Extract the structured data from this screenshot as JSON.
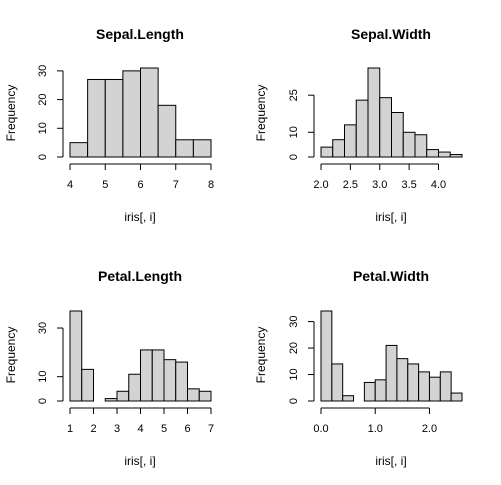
{
  "chart_data": [
    {
      "type": "bar",
      "title": "Sepal.Length",
      "xlabel": "iris[, i]",
      "ylabel": "Frequency",
      "breaks": [
        4.0,
        4.5,
        5.0,
        5.5,
        6.0,
        6.5,
        7.0,
        7.5,
        8.0
      ],
      "values": [
        5,
        27,
        27,
        30,
        31,
        18,
        6,
        6
      ],
      "xlim": [
        4.0,
        8.0
      ],
      "ylim": [
        0,
        31
      ],
      "x_ticks": [
        4,
        5,
        6,
        7,
        8
      ],
      "x_tick_labels": [
        "4",
        "5",
        "6",
        "7",
        "8"
      ],
      "y_ticks": [
        0,
        10,
        20,
        30
      ],
      "y_tick_labels": [
        "0",
        "10",
        "20",
        "30"
      ]
    },
    {
      "type": "bar",
      "title": "Sepal.Width",
      "xlabel": "iris[, i]",
      "ylabel": "Frequency",
      "breaks": [
        2.0,
        2.2,
        2.4,
        2.6,
        2.8,
        3.0,
        3.2,
        3.4,
        3.6,
        3.8,
        4.0,
        4.2,
        4.4
      ],
      "values": [
        4,
        7,
        13,
        23,
        36,
        24,
        18,
        10,
        9,
        3,
        2,
        1
      ],
      "xlim": [
        2.0,
        4.4
      ],
      "ylim": [
        0,
        36
      ],
      "x_ticks": [
        2.0,
        2.5,
        3.0,
        3.5,
        4.0
      ],
      "x_tick_labels": [
        "2.0",
        "2.5",
        "3.0",
        "3.5",
        "4.0"
      ],
      "y_ticks": [
        0,
        10,
        25
      ],
      "y_tick_labels": [
        "0",
        "10",
        "25"
      ]
    },
    {
      "type": "bar",
      "title": "Petal.Length",
      "xlabel": "iris[, i]",
      "ylabel": "Frequency",
      "breaks": [
        1.0,
        1.5,
        2.0,
        2.5,
        3.0,
        3.5,
        4.0,
        4.5,
        5.0,
        5.5,
        6.0,
        6.5,
        7.0
      ],
      "values": [
        37,
        13,
        0,
        1,
        4,
        11,
        21,
        21,
        17,
        16,
        5,
        4
      ],
      "xlim": [
        1.0,
        7.0
      ],
      "ylim": [
        0,
        37
      ],
      "x_ticks": [
        1,
        2,
        3,
        4,
        5,
        6,
        7
      ],
      "x_tick_labels": [
        "1",
        "2",
        "3",
        "4",
        "5",
        "6",
        "7"
      ],
      "y_ticks": [
        0,
        10,
        30
      ],
      "y_tick_labels": [
        "0",
        "10",
        "30"
      ]
    },
    {
      "type": "bar",
      "title": "Petal.Width",
      "xlabel": "iris[, i]",
      "ylabel": "Frequency",
      "breaks": [
        0.0,
        0.2,
        0.4,
        0.6,
        0.8,
        1.0,
        1.2,
        1.4,
        1.6,
        1.8,
        2.0,
        2.2,
        2.4,
        2.6
      ],
      "values": [
        34,
        14,
        2,
        0,
        7,
        8,
        21,
        16,
        14,
        11,
        9,
        11,
        3
      ],
      "xlim": [
        0.0,
        2.6
      ],
      "ylim": [
        0,
        34
      ],
      "x_ticks": [
        0.0,
        1.0,
        2.0
      ],
      "x_tick_labels": [
        "0.0",
        "1.0",
        "2.0"
      ],
      "y_ticks": [
        0,
        10,
        20,
        30
      ],
      "y_tick_labels": [
        "0",
        "10",
        "20",
        "30"
      ]
    }
  ]
}
